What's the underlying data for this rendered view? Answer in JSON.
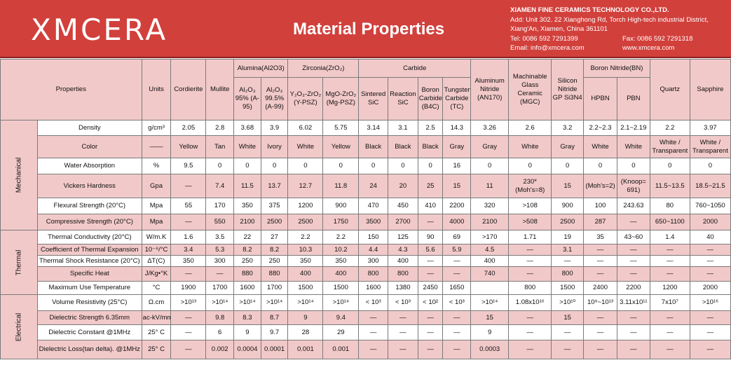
{
  "header": {
    "logo": "XMCERA",
    "title": "Material Properties",
    "company_name": "XIAMEN FINE CERAMICS TECHNOLOGY CO.,LTD.",
    "address1": "Add: Unit 302. 22 Xianghong Rd, Torch High-tech industrial District,",
    "address2": "Xiang'An, Xiamen, China 361101",
    "tel": "Tel: 0086 592 7291399",
    "fax": "Fax: 0086 592 7291318",
    "email": "Email: info@xmcera.com",
    "web": "www.xmcera.com"
  },
  "table": {
    "properties_label": "Properties",
    "units_label": "Units",
    "groups": {
      "alumina": "Alumina(Al2O3)",
      "zirconia": "Zirconia(ZrO₂)",
      "carbide": "Carbide",
      "bn": "Boron Nitride(BN)"
    },
    "materials": {
      "cordierite": "Cordierite",
      "mullite": "Mullite",
      "al95": "Al₂O₃ 95% (A-95)",
      "al99": "Al₂O₃ 99.5% (A-99)",
      "ypsz": "Y₂O₃-ZrO₂ (Y-PSZ)",
      "mgpsz": "MgO-ZrO₂ (Mg-PSZ)",
      "ssic": "Sintered SiC",
      "rsic": "Reaction SiC",
      "b4c": "Boron Carbide (B4C)",
      "tc": "Tungsten Carbide (TC)",
      "aln": "Aluminum Nitride (AN170)",
      "mgc": "Machinable Glass Ceramic (MGC)",
      "si3n4": "Silicon Nitride GP Si3N4",
      "hpbn": "HPBN",
      "pbn": "PBN",
      "quartz": "Quartz",
      "sapphire": "Sapphire"
    },
    "categories": {
      "mechanical": "Mechanical",
      "thermal": "Thermal",
      "electrical": "Electrical"
    },
    "rows": [
      {
        "name": "Density",
        "unit": "g/cm³",
        "values": [
          "2.05",
          "2.8",
          "3.68",
          "3.9",
          "6.02",
          "5.75",
          "3.14",
          "3.1",
          "2.5",
          "14.3",
          "3.26",
          "2.6",
          "3.2",
          "2.2~2.3",
          "2.1~2.19",
          "2.2",
          "3.97"
        ]
      },
      {
        "name": "Color",
        "unit": "——",
        "values": [
          "Yellow",
          "Tan",
          "White",
          "Ivory",
          "White",
          "Yellow",
          "Black",
          "Black",
          "Black",
          "Gray",
          "Gray",
          "White",
          "Gray",
          "White",
          "White",
          "White / Transparent",
          "White / Transparent"
        ]
      },
      {
        "name": "Water Absorption",
        "unit": "%",
        "values": [
          "9.5",
          "0",
          "0",
          "0",
          "0",
          "0",
          "0",
          "0",
          "0",
          "16",
          "0",
          "0",
          "0",
          "0",
          "0",
          "0",
          "0"
        ]
      },
      {
        "name": "Vickers Hardness",
        "unit": "Gpa",
        "values": [
          "—",
          "7.4",
          "11.5",
          "13.7",
          "12.7",
          "11.8",
          "24",
          "20",
          "25",
          "15",
          "11",
          "230* (Moh's=8)",
          "15",
          "(Moh's=2)",
          "(Knoop= 691)",
          "11.5~13.5",
          "18.5~21.5"
        ]
      },
      {
        "name": "Flexural Strength  (20°C)",
        "unit": "Mpa",
        "values": [
          "55",
          "170",
          "350",
          "375",
          "1200",
          "900",
          "470",
          "450",
          "410",
          "2200",
          "320",
          ">108",
          "900",
          "100",
          "243.63",
          "80",
          "760~1050"
        ]
      },
      {
        "name": "Compressive Strength (20°C)",
        "unit": "Mpa",
        "values": [
          "—",
          "550",
          "2100",
          "2500",
          "2500",
          "1750",
          "3500",
          "2700",
          "—",
          "4000",
          "2100",
          ">508",
          "2500",
          "287",
          "—",
          "650~1100",
          "2000"
        ]
      },
      {
        "name": "Thermal Conductivity  (20°C)",
        "unit": "W/m.K",
        "values": [
          "1.6",
          "3.5",
          "22",
          "27",
          "2.2",
          "2.2",
          "150",
          "125",
          "90",
          "69",
          ">170",
          "1.71",
          "19",
          "35",
          "43~60",
          "1.4",
          "40"
        ]
      },
      {
        "name": "Coefficient of Thermal Expansion",
        "unit": "10⁻⁶/°C",
        "values": [
          "3.4",
          "5.3",
          "8.2",
          "8.2",
          "10.3",
          "10.2",
          "4.4",
          "4.3",
          "5.6",
          "5.9",
          "4.5",
          "—",
          "3.1",
          "—",
          "—",
          "—",
          "—"
        ]
      },
      {
        "name": "Thermal Shock Resistance (20°C)",
        "unit": "∆T(C)",
        "values": [
          "350",
          "300",
          "250",
          "250",
          "350",
          "350",
          "300",
          "400",
          "—",
          "—",
          "400",
          "—",
          "—",
          "—",
          "—",
          "—",
          "—"
        ]
      },
      {
        "name": "Specific Heat",
        "unit": "J/Kg•°K",
        "values": [
          "—",
          "—",
          "880",
          "880",
          "400",
          "400",
          "800",
          "800",
          "—",
          "—",
          "740",
          "—",
          "800",
          "—",
          "—",
          "—",
          "—"
        ]
      },
      {
        "name": "Maximum Use Temperature",
        "unit": "°C",
        "values": [
          "1900",
          "1700",
          "1600",
          "1700",
          "1500",
          "1500",
          "1600",
          "1380",
          "2450",
          "1650",
          "",
          "800",
          "1500",
          "2400",
          "2200",
          "1200",
          "2000"
        ]
      },
      {
        "name": "Volume Resistivity (25°C)",
        "unit": "Ω.cm",
        "values": [
          ">10¹³",
          ">10¹⁴",
          ">10¹⁴",
          ">10¹⁴",
          ">10¹⁴",
          ">10¹⁴",
          "< 10³",
          "< 10³",
          "< 10²",
          "< 10³",
          ">10¹⁴",
          "1.08x10¹⁶",
          ">10¹⁰",
          "10⁸~10¹³",
          "3.11x10¹¹",
          "7x10⁷",
          ">10¹⁶"
        ]
      },
      {
        "name": "Dielectric Strength 6.35mm",
        "unit": "ac-kV/mm",
        "values": [
          "—",
          "9.8",
          "8.3",
          "8.7",
          "9",
          "9.4",
          "—",
          "—",
          "—",
          "—",
          "15",
          "—",
          "15",
          "—",
          "—",
          "—",
          "—"
        ]
      },
      {
        "name": "Dielectric Constant @1MHz",
        "unit": "25° C",
        "values": [
          "—",
          "6",
          "9",
          "9.7",
          "28",
          "29",
          "—",
          "—",
          "—",
          "—",
          "9",
          "—",
          "—",
          "—",
          "—",
          "—",
          "—"
        ]
      },
      {
        "name": "Dielectric Loss(tan delta). @1MHz",
        "unit": "25° C",
        "values": [
          "—",
          "0.002",
          "0.0004",
          "0.0001",
          "0.001",
          "0.001",
          "—",
          "—",
          "—",
          "—",
          "0.0003",
          "—",
          "—",
          "—",
          "—",
          "—",
          "—"
        ]
      }
    ]
  }
}
